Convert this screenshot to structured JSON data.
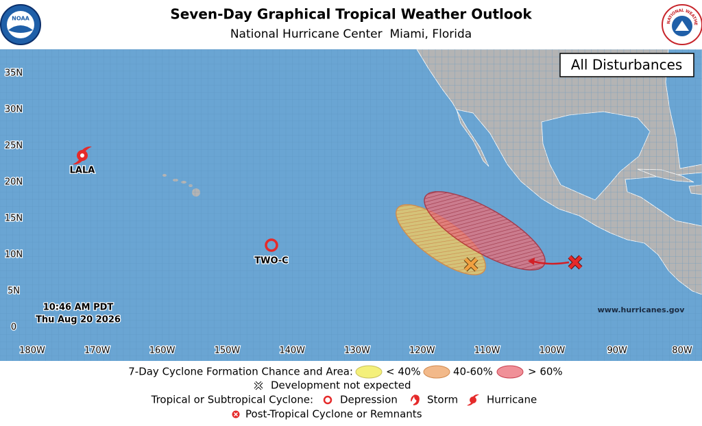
{
  "header": {
    "title": "Seven-Day Graphical Tropical Weather Outlook",
    "subtitle": "National Hurricane Center  Miami, Florida",
    "logos": {
      "left": "NOAA",
      "right": "NATIONAL WEATHER SERVICE"
    }
  },
  "map": {
    "panel_label": "All Disturbances",
    "latitude_labels": [
      "35N",
      "30N",
      "25N",
      "20N",
      "15N",
      "10N",
      "5N",
      "0"
    ],
    "longitude_labels": [
      "180W",
      "170W",
      "160W",
      "150W",
      "140W",
      "130W",
      "120W",
      "110W",
      "100W",
      "90W",
      "80W"
    ],
    "storm_labels": [
      "LALA",
      "TWO-C"
    ],
    "timestamp": [
      "10:46 AM PDT",
      "Thu Aug 20 2026"
    ],
    "website": "www.hurricanes.gov"
  },
  "legend": {
    "formation_title": "7-Day Cyclone Formation Chance and Area:",
    "formation_levels": [
      "< 40%",
      "40-60%",
      "> 60%"
    ],
    "not_expected": "Development not expected",
    "cyclone_title": "Tropical or Subtropical Cyclone:",
    "cyclone_types": [
      "Depression",
      "Storm",
      "Hurricane"
    ],
    "post_tropical": "Post-Tropical Cyclone or Remnants"
  }
}
